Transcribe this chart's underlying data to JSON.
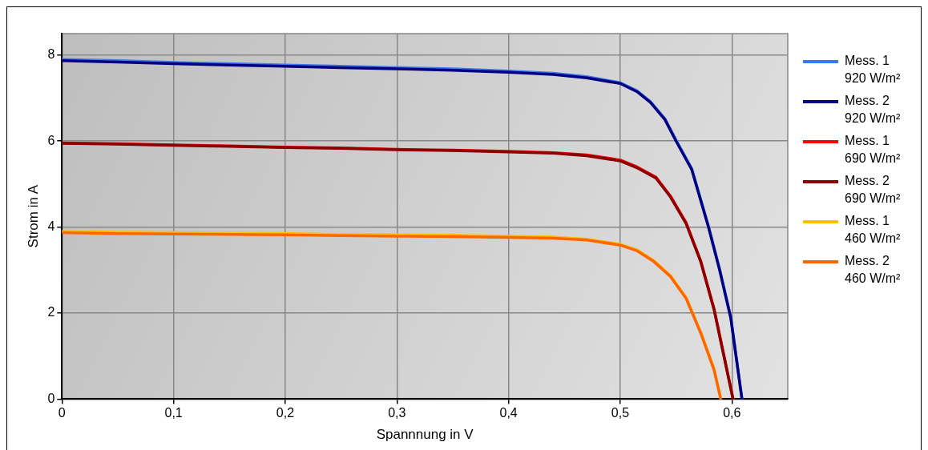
{
  "chart_data": {
    "type": "line",
    "xlabel": "Spannnung in V",
    "ylabel": "Strom in A",
    "xlim": [
      0,
      0.65
    ],
    "ylim": [
      0,
      8.5
    ],
    "xticks": [
      0,
      {
        "value": 0.1,
        "label": "0,1"
      },
      {
        "value": 0.2,
        "label": "0,2"
      },
      {
        "value": 0.3,
        "label": "0,3"
      },
      {
        "value": 0.4,
        "label": "0,4"
      },
      {
        "value": 0.5,
        "label": "0,5"
      },
      {
        "value": 0.6,
        "label": "0,6"
      }
    ],
    "yticks": [
      0,
      2,
      4,
      6,
      8
    ],
    "grid": true,
    "legend": "right",
    "marker": "none",
    "line_style": "solid",
    "series": [
      {
        "name": "Mess. 1\n920 W/m²",
        "color": "#3c78f0",
        "x": [
          0,
          0.05,
          0.1,
          0.15,
          0.2,
          0.25,
          0.3,
          0.35,
          0.4,
          0.44,
          0.47,
          0.5,
          0.515,
          0.527,
          0.54,
          0.55,
          0.564,
          0.579,
          0.589,
          0.599,
          0.609
        ],
        "values": [
          7.9,
          7.87,
          7.83,
          7.8,
          7.77,
          7.74,
          7.71,
          7.68,
          7.63,
          7.58,
          7.5,
          7.36,
          7.17,
          6.92,
          6.52,
          6.02,
          5.36,
          4.02,
          3.02,
          1.9,
          0
        ]
      },
      {
        "name": "Mess. 2\n920 W/m²",
        "color": "#000080",
        "x": [
          0,
          0.05,
          0.1,
          0.15,
          0.2,
          0.25,
          0.3,
          0.35,
          0.4,
          0.44,
          0.47,
          0.5,
          0.515,
          0.527,
          0.54,
          0.55,
          0.564,
          0.579,
          0.589,
          0.599,
          0.609
        ],
        "values": [
          7.87,
          7.84,
          7.8,
          7.77,
          7.74,
          7.71,
          7.68,
          7.65,
          7.6,
          7.55,
          7.47,
          7.34,
          7.15,
          6.9,
          6.5,
          6.0,
          5.34,
          4.0,
          3.0,
          1.88,
          0
        ]
      },
      {
        "name": "Mess. 1\n690 W/m²",
        "color": "#ff0000",
        "x": [
          0,
          0.05,
          0.1,
          0.15,
          0.2,
          0.25,
          0.3,
          0.35,
          0.4,
          0.44,
          0.47,
          0.5,
          0.515,
          0.532,
          0.545,
          0.559,
          0.572,
          0.584,
          0.592,
          0.601
        ],
        "values": [
          5.96,
          5.94,
          5.91,
          5.89,
          5.86,
          5.84,
          5.81,
          5.79,
          5.76,
          5.73,
          5.68,
          5.56,
          5.4,
          5.16,
          4.72,
          4.1,
          3.22,
          2.1,
          1.12,
          0
        ]
      },
      {
        "name": "Mess. 2\n690 W/m²",
        "color": "#8b0000",
        "x": [
          0,
          0.05,
          0.1,
          0.15,
          0.2,
          0.25,
          0.3,
          0.35,
          0.4,
          0.44,
          0.47,
          0.5,
          0.515,
          0.532,
          0.545,
          0.559,
          0.572,
          0.584,
          0.592,
          0.601
        ],
        "values": [
          5.95,
          5.93,
          5.9,
          5.88,
          5.85,
          5.83,
          5.8,
          5.78,
          5.75,
          5.72,
          5.66,
          5.54,
          5.38,
          5.14,
          4.7,
          4.08,
          3.2,
          2.08,
          1.1,
          0
        ]
      },
      {
        "name": "Mess. 1\n460 W/m²",
        "color": "#ffc000",
        "x": [
          0,
          0.05,
          0.1,
          0.15,
          0.2,
          0.25,
          0.3,
          0.35,
          0.4,
          0.44,
          0.47,
          0.5,
          0.515,
          0.53,
          0.545,
          0.559,
          0.572,
          0.584,
          0.59
        ],
        "values": [
          3.9,
          3.88,
          3.87,
          3.86,
          3.85,
          3.83,
          3.82,
          3.81,
          3.79,
          3.77,
          3.72,
          3.6,
          3.47,
          3.22,
          2.87,
          2.36,
          1.56,
          0.7,
          0
        ]
      },
      {
        "name": "Mess. 2\n460 W/m²",
        "color": "#ff6600",
        "x": [
          0,
          0.05,
          0.1,
          0.15,
          0.2,
          0.25,
          0.3,
          0.35,
          0.4,
          0.44,
          0.47,
          0.5,
          0.515,
          0.53,
          0.545,
          0.559,
          0.572,
          0.584,
          0.59
        ],
        "values": [
          3.87,
          3.85,
          3.84,
          3.83,
          3.82,
          3.8,
          3.79,
          3.78,
          3.76,
          3.74,
          3.7,
          3.58,
          3.45,
          3.2,
          2.85,
          2.34,
          1.54,
          0.68,
          0
        ]
      }
    ]
  }
}
